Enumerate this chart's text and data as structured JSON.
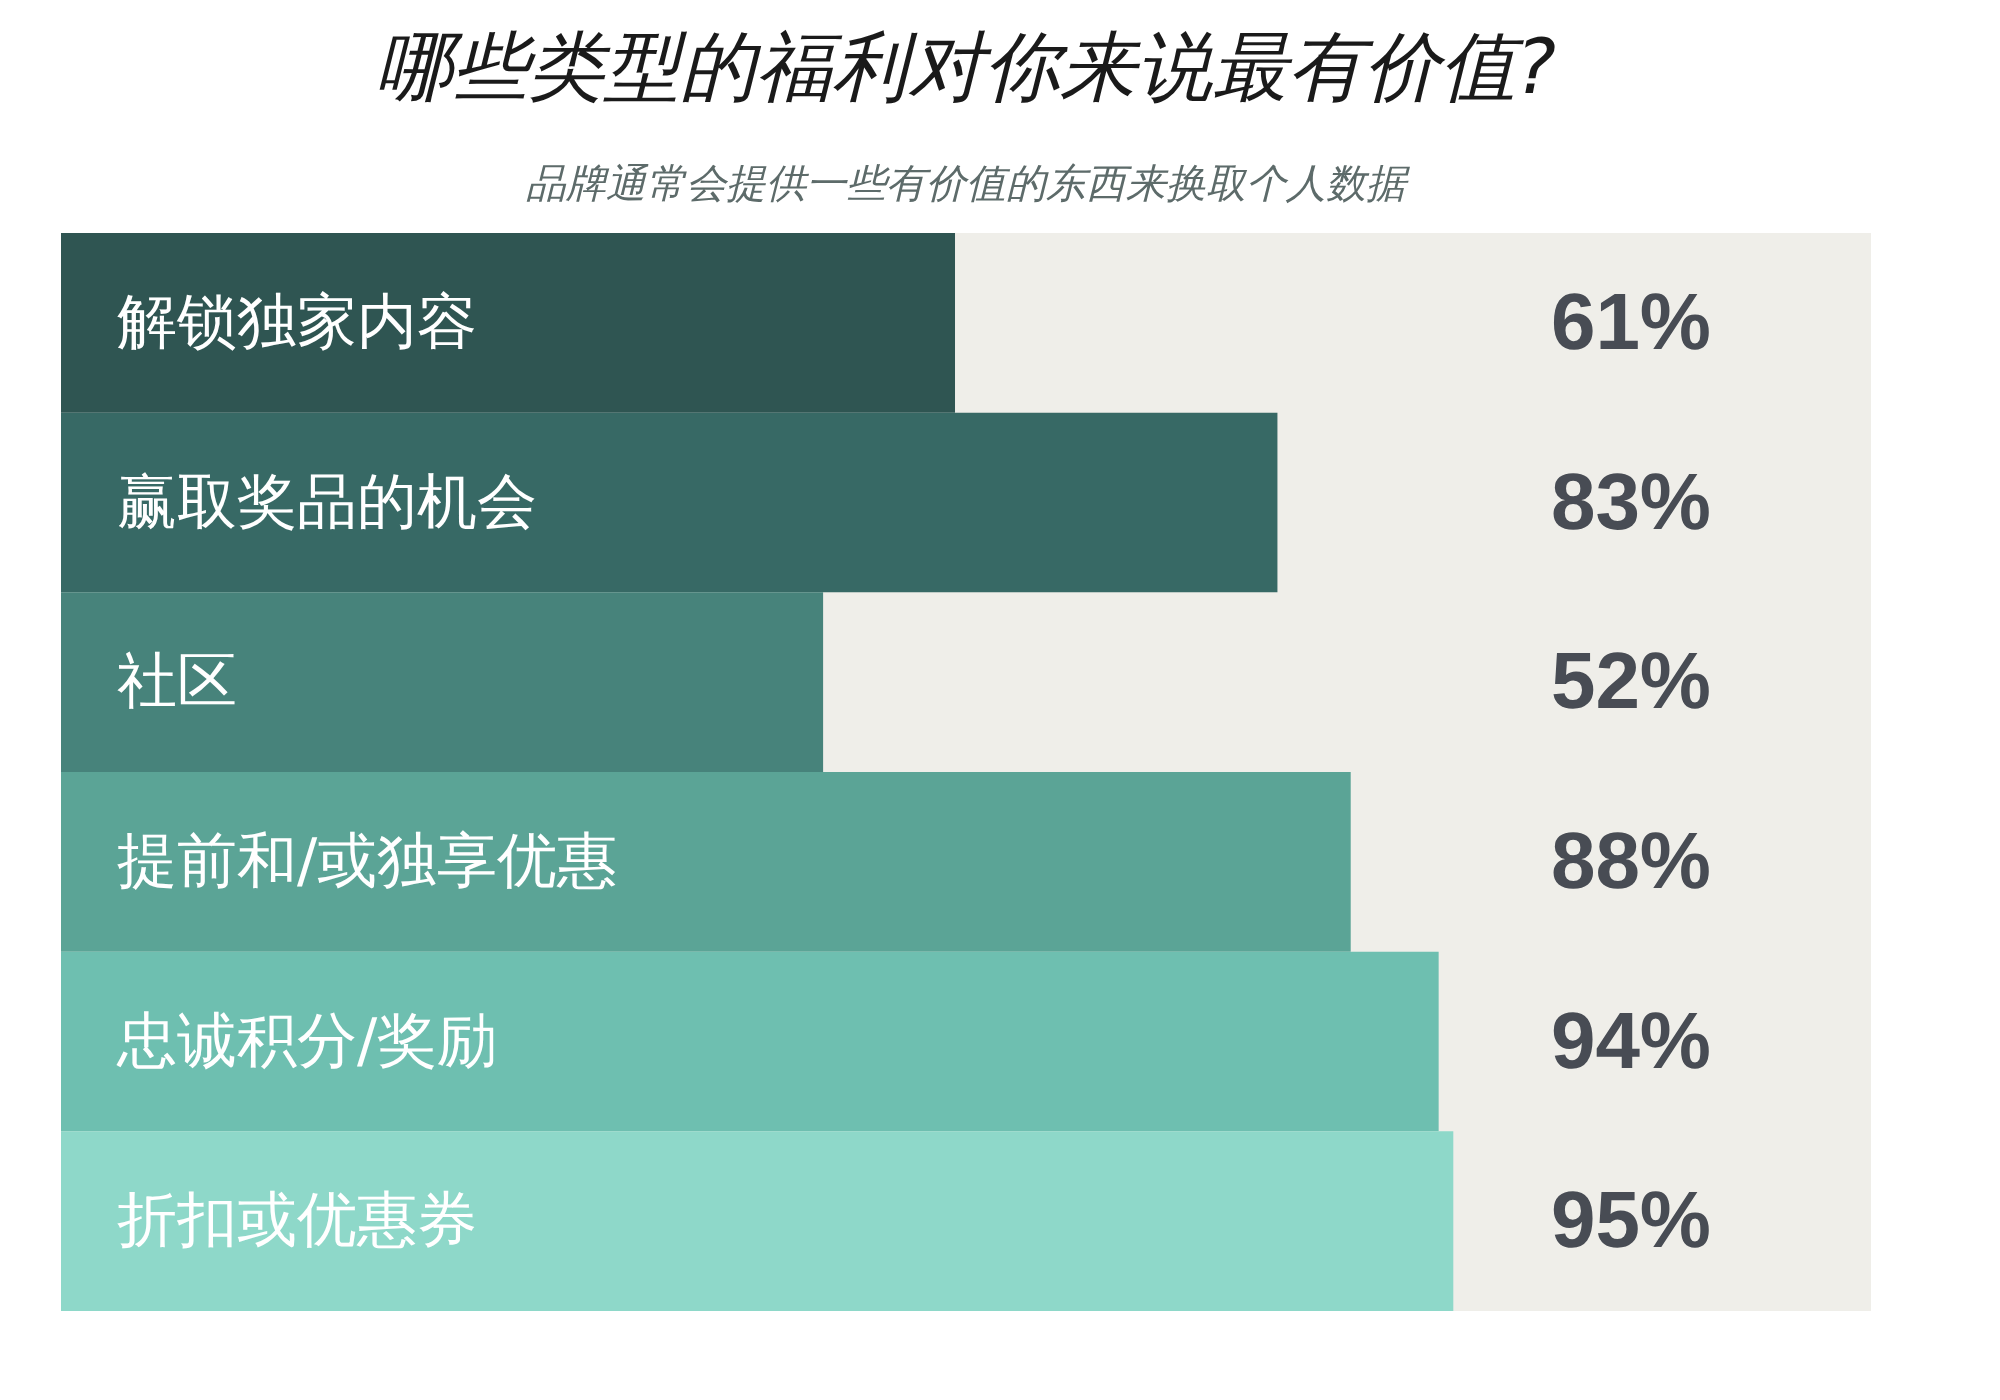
{
  "chart_data": {
    "type": "bar",
    "orientation": "horizontal",
    "title": "哪些类型的福利对你来说最有价值?",
    "subtitle": "品牌通常会提供一些有价值的东西来换取个人数据",
    "categories": [
      "解锁独家内容",
      "赢取奖品的机会",
      "社区",
      "提前和/或独享优惠",
      "忠诚积分/奖励",
      "折扣或优惠券"
    ],
    "values": [
      61,
      83,
      52,
      88,
      94,
      95
    ],
    "colors": [
      "#2f5552",
      "#376965",
      "#47837b",
      "#5ba496",
      "#6ebfb0",
      "#8ed8c9"
    ],
    "value_labels": [
      "61%",
      "83%",
      "52%",
      "88%",
      "94%",
      "95%"
    ],
    "tick_labels": "y"
  }
}
